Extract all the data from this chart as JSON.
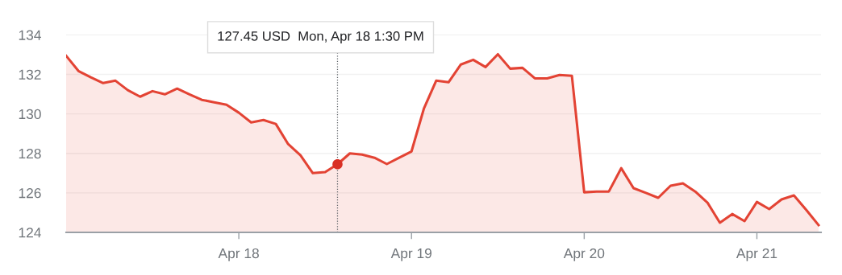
{
  "chart_data": {
    "type": "area",
    "categories": [
      null,
      null,
      null,
      null,
      null,
      null,
      null,
      null,
      null,
      null,
      null,
      null,
      null,
      null,
      "Apr 18",
      null,
      null,
      null,
      null,
      null,
      null,
      null,
      null,
      null,
      null,
      null,
      null,
      null,
      "Apr 19",
      null,
      null,
      null,
      null,
      null,
      null,
      null,
      null,
      null,
      null,
      null,
      null,
      null,
      "Apr 20",
      null,
      null,
      null,
      null,
      null,
      null,
      null,
      null,
      null,
      null,
      null,
      null,
      null,
      "Apr 21",
      null,
      null,
      null,
      null,
      null
    ],
    "series": [
      {
        "color": "#e34334",
        "values": [
          132.94,
          132.17,
          131.85,
          131.56,
          131.68,
          131.2,
          130.87,
          131.15,
          130.99,
          131.28,
          130.99,
          130.71,
          130.59,
          130.46,
          130.06,
          129.57,
          129.69,
          129.49,
          128.47,
          127.9,
          127.0,
          127.05,
          127.45,
          128.0,
          127.94,
          127.78,
          127.46,
          127.78,
          128.1,
          130.26,
          131.68,
          131.6,
          132.5,
          132.74,
          132.37,
          133.02,
          132.29,
          132.33,
          131.8,
          131.8,
          131.97,
          131.93,
          126.03,
          126.07,
          126.07,
          127.25,
          126.24,
          126.0,
          125.75,
          126.36,
          126.48,
          126.07,
          125.5,
          124.49,
          124.93,
          124.57,
          125.54,
          125.18,
          125.67,
          125.87,
          125.14,
          124.37
        ]
      },
      {
        "type": "scatter",
        "color": "#d93025",
        "values": [
          null,
          null,
          null,
          null,
          null,
          null,
          null,
          null,
          null,
          null,
          null,
          null,
          null,
          null,
          null,
          null,
          null,
          null,
          null,
          null,
          null,
          null,
          127.45,
          null,
          null,
          null,
          null,
          null,
          null,
          null,
          null,
          null,
          null,
          null,
          null,
          null,
          null,
          null,
          null,
          null,
          null,
          null,
          null,
          null,
          null,
          null,
          null,
          null,
          null,
          null,
          null,
          null,
          null,
          null,
          null,
          null,
          null,
          null,
          null,
          null,
          null,
          null
        ]
      }
    ],
    "ylim": [
      124,
      134.3
    ],
    "yticks": [
      124,
      126,
      128,
      130,
      132,
      134
    ],
    "grid": "y",
    "annotations": [
      "127.45 USD  Mon, Apr 18 1:30 PM"
    ]
  }
}
